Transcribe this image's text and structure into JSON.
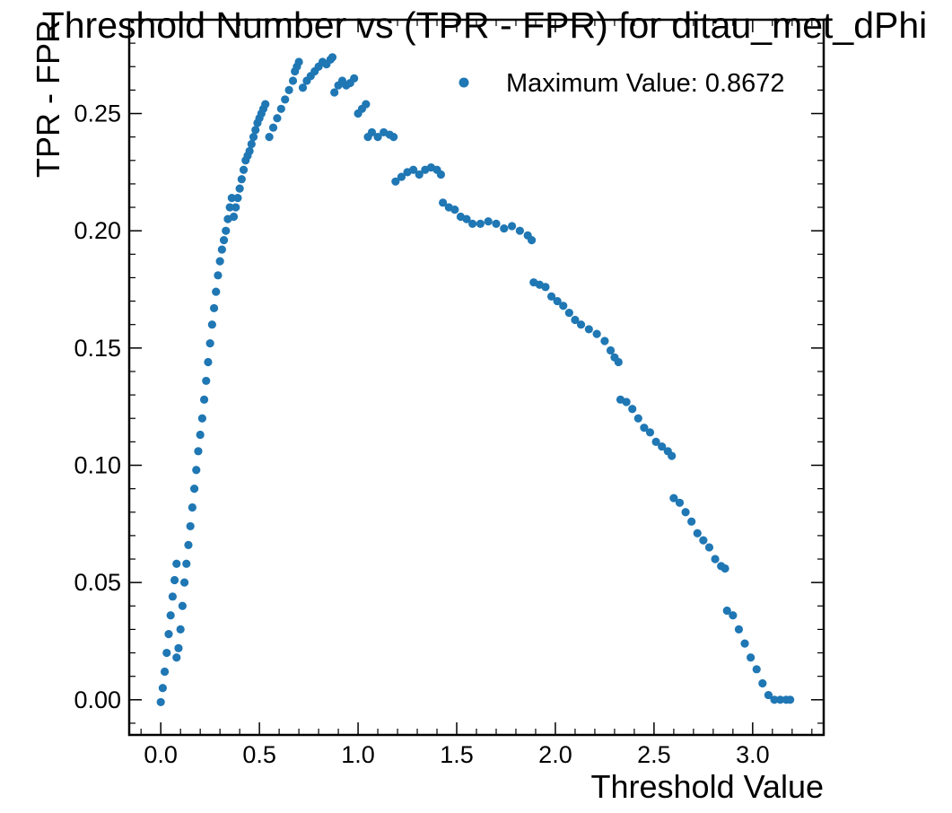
{
  "chart_data": {
    "type": "scatter",
    "title": "Threshold Number vs (TPR - FPR) for ditau_met_dPhi",
    "xlabel": "Threshold Value",
    "ylabel": "TPR - FPR",
    "xlim": [
      -0.16,
      3.36
    ],
    "ylim": [
      -0.015,
      0.29
    ],
    "xticks": [
      "0.0",
      "0.5",
      "1.0",
      "1.5",
      "2.0",
      "2.5",
      "3.0"
    ],
    "yticks": [
      "0.00",
      "0.05",
      "0.10",
      "0.15",
      "0.20",
      "0.25"
    ],
    "grid": false,
    "legend_position": "top-right",
    "marker_color": "#1f77b4",
    "series": [
      {
        "name": "Maximum Value: 0.8672",
        "points": [
          [
            0.0,
            -0.001
          ],
          [
            0.01,
            0.005
          ],
          [
            0.02,
            0.012
          ],
          [
            0.03,
            0.02
          ],
          [
            0.04,
            0.028
          ],
          [
            0.05,
            0.036
          ],
          [
            0.06,
            0.044
          ],
          [
            0.07,
            0.051
          ],
          [
            0.08,
            0.058
          ],
          [
            0.08,
            0.018
          ],
          [
            0.09,
            0.022
          ],
          [
            0.1,
            0.03
          ],
          [
            0.11,
            0.04
          ],
          [
            0.12,
            0.05
          ],
          [
            0.13,
            0.058
          ],
          [
            0.14,
            0.066
          ],
          [
            0.15,
            0.074
          ],
          [
            0.16,
            0.082
          ],
          [
            0.17,
            0.09
          ],
          [
            0.18,
            0.098
          ],
          [
            0.19,
            0.106
          ],
          [
            0.2,
            0.113
          ],
          [
            0.21,
            0.12
          ],
          [
            0.22,
            0.128
          ],
          [
            0.23,
            0.136
          ],
          [
            0.24,
            0.144
          ],
          [
            0.25,
            0.152
          ],
          [
            0.26,
            0.16
          ],
          [
            0.27,
            0.167
          ],
          [
            0.28,
            0.174
          ],
          [
            0.29,
            0.181
          ],
          [
            0.3,
            0.187
          ],
          [
            0.31,
            0.192
          ],
          [
            0.32,
            0.196
          ],
          [
            0.33,
            0.2
          ],
          [
            0.34,
            0.205
          ],
          [
            0.35,
            0.21
          ],
          [
            0.36,
            0.214
          ],
          [
            0.37,
            0.206
          ],
          [
            0.38,
            0.21
          ],
          [
            0.39,
            0.214
          ],
          [
            0.4,
            0.218
          ],
          [
            0.41,
            0.222
          ],
          [
            0.42,
            0.226
          ],
          [
            0.43,
            0.23
          ],
          [
            0.44,
            0.232
          ],
          [
            0.45,
            0.234
          ],
          [
            0.46,
            0.237
          ],
          [
            0.47,
            0.24
          ],
          [
            0.48,
            0.243
          ],
          [
            0.49,
            0.246
          ],
          [
            0.5,
            0.248
          ],
          [
            0.51,
            0.25
          ],
          [
            0.52,
            0.252
          ],
          [
            0.53,
            0.254
          ],
          [
            0.55,
            0.24
          ],
          [
            0.57,
            0.244
          ],
          [
            0.59,
            0.248
          ],
          [
            0.61,
            0.252
          ],
          [
            0.63,
            0.256
          ],
          [
            0.65,
            0.26
          ],
          [
            0.67,
            0.264
          ],
          [
            0.68,
            0.268
          ],
          [
            0.69,
            0.27
          ],
          [
            0.7,
            0.272
          ],
          [
            0.72,
            0.261
          ],
          [
            0.74,
            0.264
          ],
          [
            0.76,
            0.266
          ],
          [
            0.78,
            0.268
          ],
          [
            0.8,
            0.27
          ],
          [
            0.82,
            0.272
          ],
          [
            0.84,
            0.271
          ],
          [
            0.86,
            0.273
          ],
          [
            0.87,
            0.274
          ],
          [
            0.88,
            0.259
          ],
          [
            0.9,
            0.262
          ],
          [
            0.92,
            0.264
          ],
          [
            0.94,
            0.262
          ],
          [
            0.96,
            0.263
          ],
          [
            0.98,
            0.265
          ],
          [
            1.0,
            0.25
          ],
          [
            1.02,
            0.252
          ],
          [
            1.04,
            0.254
          ],
          [
            1.05,
            0.24
          ],
          [
            1.07,
            0.242
          ],
          [
            1.1,
            0.24
          ],
          [
            1.13,
            0.242
          ],
          [
            1.16,
            0.241
          ],
          [
            1.18,
            0.24
          ],
          [
            1.19,
            0.221
          ],
          [
            1.22,
            0.223
          ],
          [
            1.25,
            0.225
          ],
          [
            1.28,
            0.226
          ],
          [
            1.31,
            0.224
          ],
          [
            1.34,
            0.226
          ],
          [
            1.37,
            0.227
          ],
          [
            1.4,
            0.226
          ],
          [
            1.42,
            0.224
          ],
          [
            1.43,
            0.212
          ],
          [
            1.46,
            0.21
          ],
          [
            1.49,
            0.209
          ],
          [
            1.52,
            0.206
          ],
          [
            1.55,
            0.205
          ],
          [
            1.58,
            0.203
          ],
          [
            1.62,
            0.203
          ],
          [
            1.66,
            0.204
          ],
          [
            1.7,
            0.203
          ],
          [
            1.74,
            0.201
          ],
          [
            1.78,
            0.202
          ],
          [
            1.82,
            0.2
          ],
          [
            1.86,
            0.198
          ],
          [
            1.88,
            0.196
          ],
          [
            1.89,
            0.178
          ],
          [
            1.92,
            0.177
          ],
          [
            1.95,
            0.176
          ],
          [
            1.98,
            0.172
          ],
          [
            2.01,
            0.17
          ],
          [
            2.04,
            0.168
          ],
          [
            2.07,
            0.165
          ],
          [
            2.1,
            0.162
          ],
          [
            2.13,
            0.16
          ],
          [
            2.17,
            0.158
          ],
          [
            2.21,
            0.156
          ],
          [
            2.25,
            0.153
          ],
          [
            2.28,
            0.149
          ],
          [
            2.3,
            0.146
          ],
          [
            2.32,
            0.144
          ],
          [
            2.33,
            0.128
          ],
          [
            2.36,
            0.127
          ],
          [
            2.39,
            0.124
          ],
          [
            2.42,
            0.12
          ],
          [
            2.45,
            0.116
          ],
          [
            2.48,
            0.114
          ],
          [
            2.51,
            0.11
          ],
          [
            2.54,
            0.108
          ],
          [
            2.57,
            0.106
          ],
          [
            2.59,
            0.104
          ],
          [
            2.6,
            0.086
          ],
          [
            2.63,
            0.084
          ],
          [
            2.66,
            0.08
          ],
          [
            2.69,
            0.076
          ],
          [
            2.72,
            0.071
          ],
          [
            2.75,
            0.068
          ],
          [
            2.78,
            0.065
          ],
          [
            2.81,
            0.06
          ],
          [
            2.84,
            0.057
          ],
          [
            2.86,
            0.056
          ],
          [
            2.87,
            0.038
          ],
          [
            2.9,
            0.036
          ],
          [
            2.93,
            0.03
          ],
          [
            2.96,
            0.024
          ],
          [
            2.99,
            0.018
          ],
          [
            3.02,
            0.013
          ],
          [
            3.05,
            0.007
          ],
          [
            3.08,
            0.002
          ],
          [
            3.11,
            0.0
          ],
          [
            3.14,
            0.0
          ],
          [
            3.17,
            0.0
          ],
          [
            3.19,
            0.0
          ]
        ]
      }
    ]
  }
}
